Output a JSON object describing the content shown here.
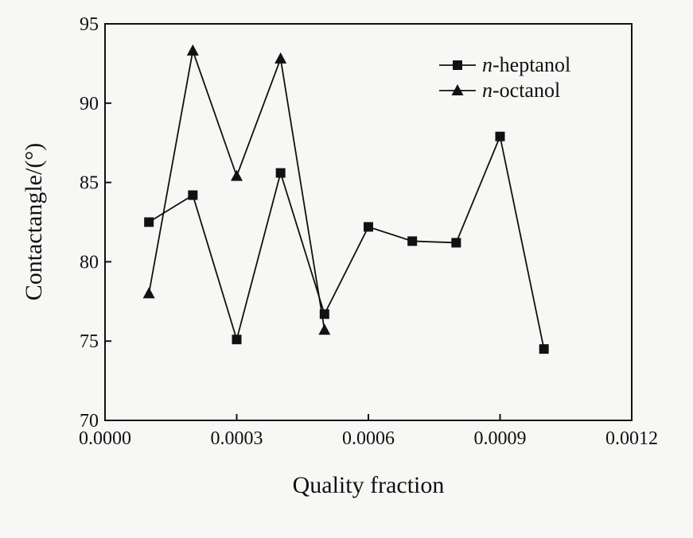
{
  "chart_data": {
    "type": "line",
    "xlabel": "Quality fraction",
    "ylabel": "Contactangle/(°)",
    "xlim": [
      0.0,
      0.0012
    ],
    "ylim": [
      70,
      95
    ],
    "x_ticks": [
      0.0,
      0.0003,
      0.0006,
      0.0009,
      0.0012
    ],
    "x_tick_labels": [
      "0.0000",
      "0.0003",
      "0.0006",
      "0.0009",
      "0.0012"
    ],
    "y_ticks": [
      70,
      75,
      80,
      85,
      90,
      95
    ],
    "y_tick_labels": [
      "70",
      "75",
      "80",
      "85",
      "90",
      "95"
    ],
    "grid": false,
    "legend_position": "top-right",
    "series": [
      {
        "name": "n-heptanol",
        "name_italic": "n",
        "name_rest": "-heptanol",
        "marker": "square",
        "color": "#111111",
        "x": [
          0.0001,
          0.0002,
          0.0003,
          0.0004,
          0.0005,
          0.0006,
          0.0007,
          0.0008,
          0.0009,
          0.001
        ],
        "y": [
          82.5,
          84.2,
          75.1,
          85.6,
          76.7,
          82.2,
          81.3,
          81.2,
          87.9,
          74.5
        ]
      },
      {
        "name": "n-octanol",
        "name_italic": "n",
        "name_rest": "-octanol",
        "marker": "triangle",
        "color": "#111111",
        "x": [
          0.0001,
          0.0002,
          0.0003,
          0.0004,
          0.0005
        ],
        "y": [
          78.0,
          93.3,
          85.4,
          92.8,
          75.7
        ]
      }
    ]
  }
}
